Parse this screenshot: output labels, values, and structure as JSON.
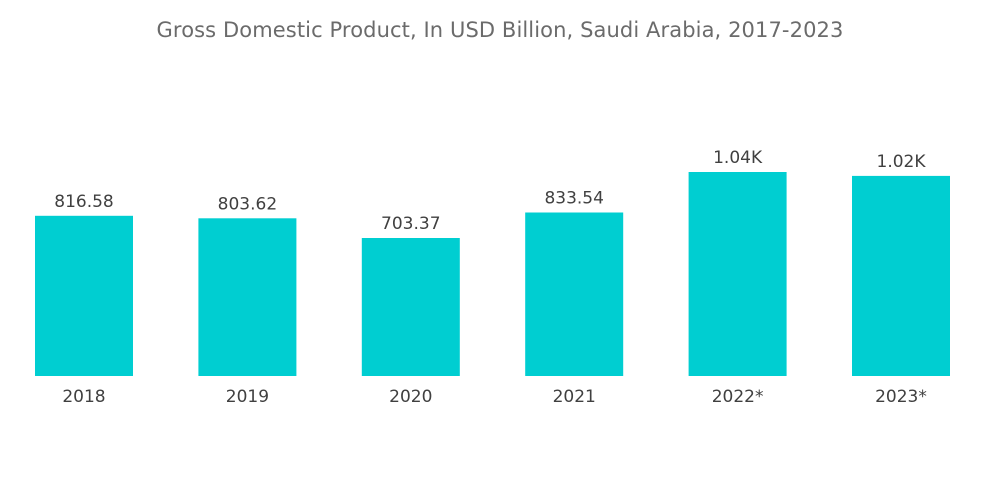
{
  "chart_data": {
    "type": "bar",
    "title": "Gross Domestic Product, In USD Billion, Saudi Arabia, 2017-2023",
    "xlabel": "",
    "ylabel": "",
    "categories": [
      "2018",
      "2019",
      "2020",
      "2021",
      "2022*",
      "2023*"
    ],
    "values": [
      816.58,
      803.62,
      703.37,
      833.54,
      1040,
      1020
    ],
    "value_labels": [
      "816.58",
      "803.62",
      "703.37",
      "833.54",
      "1.04K",
      "1.02K"
    ],
    "ylim": [
      0,
      1050
    ],
    "grid": false,
    "bar_color": "#00CED1"
  }
}
